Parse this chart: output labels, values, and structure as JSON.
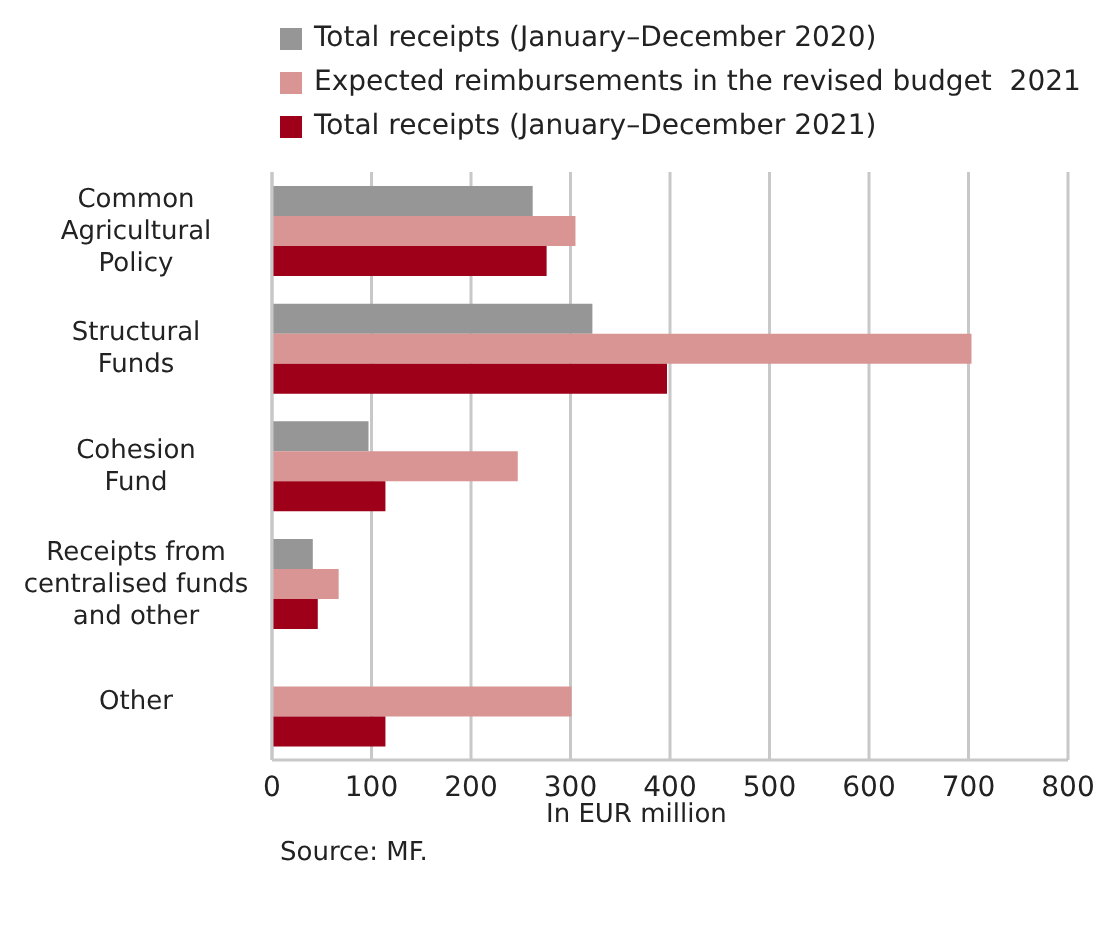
{
  "chart_data": {
    "type": "bar",
    "orientation": "horizontal",
    "categories": [
      "Common\nAgricultural\nPolicy",
      "Structural\nFunds",
      "Cohesion\nFund",
      "Receipts from\ncentralised funds\nand other",
      "Other"
    ],
    "series": [
      {
        "name": "Total receipts (January–December 2020)",
        "color": "#969696",
        "values": [
          262,
          322,
          97,
          41,
          null
        ]
      },
      {
        "name": "Expected reimbursements in the revised budget  2021",
        "color": "#d99594",
        "values": [
          305,
          703,
          247,
          67,
          301
        ]
      },
      {
        "name": "Total receipts (January–December 2021)",
        "color": "#9e0019",
        "values": [
          276,
          397,
          114,
          46,
          114
        ]
      }
    ],
    "xlim": [
      0,
      800
    ],
    "xticks": [
      0,
      100,
      200,
      300,
      400,
      500,
      600,
      700,
      800
    ],
    "xlabel": "In EUR million",
    "grid": "x",
    "legend": "top",
    "annotations": [
      "Source: MF."
    ]
  }
}
